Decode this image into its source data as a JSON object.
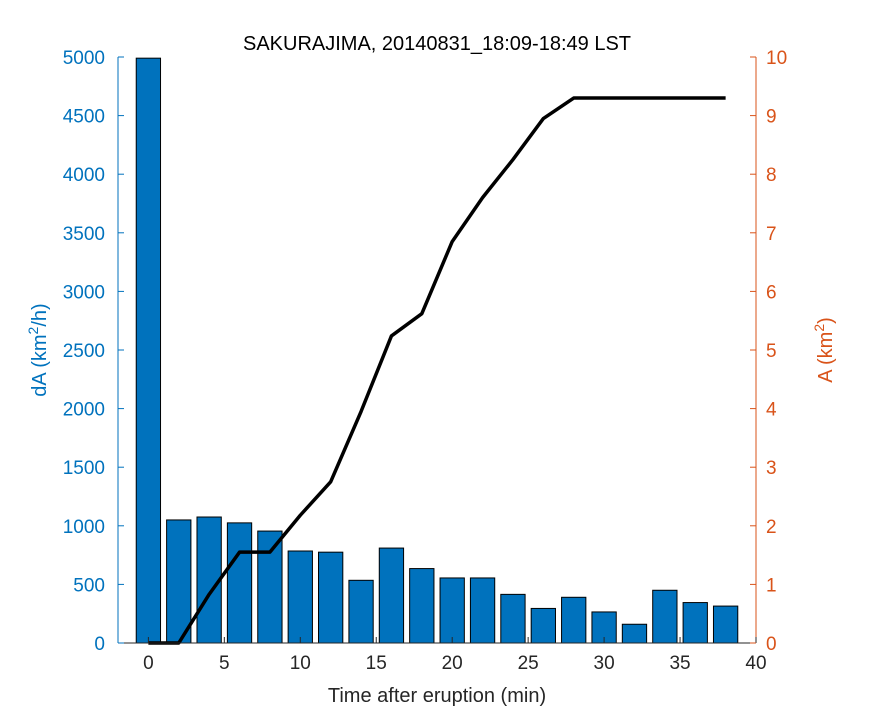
{
  "chart_data": {
    "type": "bar",
    "title": "SAKURAJIMA, 20140831_18:09-18:49 LST",
    "xlabel": "Time after eruption (min)",
    "xlim": [
      -2,
      40
    ],
    "xticks": [
      0,
      5,
      10,
      15,
      20,
      25,
      30,
      35,
      40
    ],
    "left_axis": {
      "label_main": "dA (km",
      "label_sup": "2",
      "label_tail": "/h)",
      "ylim": [
        0,
        5000
      ],
      "ticks": [
        0,
        500,
        1000,
        1500,
        2000,
        2500,
        3000,
        3500,
        4000,
        4500,
        5000
      ],
      "color": "#0072BD"
    },
    "right_axis": {
      "label_main": "A (km",
      "label_sup": "2",
      "label_tail": ")",
      "ylim": [
        0,
        10
      ],
      "ticks": [
        0,
        1,
        2,
        3,
        4,
        5,
        6,
        7,
        8,
        9,
        10
      ],
      "color": "#D95319"
    },
    "bars": {
      "axis": "left",
      "color": "#0072BD",
      "x": [
        0,
        2,
        4,
        6,
        8,
        10,
        12,
        14,
        16,
        18,
        20,
        22,
        24,
        26,
        28,
        30,
        32,
        34,
        36,
        38
      ],
      "values": [
        4990,
        1050,
        1075,
        1025,
        955,
        785,
        775,
        535,
        810,
        635,
        555,
        555,
        415,
        295,
        390,
        265,
        160,
        450,
        345,
        315
      ]
    },
    "line": {
      "axis": "right",
      "color": "#000000",
      "x": [
        0,
        2,
        4,
        6,
        8,
        10,
        12,
        14,
        16,
        18,
        20,
        22,
        24,
        26,
        28,
        30,
        32,
        34,
        36,
        38
      ],
      "values": [
        0,
        0,
        0.83,
        1.55,
        1.55,
        2.18,
        2.75,
        3.95,
        5.24,
        5.62,
        6.85,
        7.6,
        8.25,
        8.95,
        9.3,
        9.3,
        9.3,
        9.3,
        9.3,
        9.3
      ]
    }
  }
}
